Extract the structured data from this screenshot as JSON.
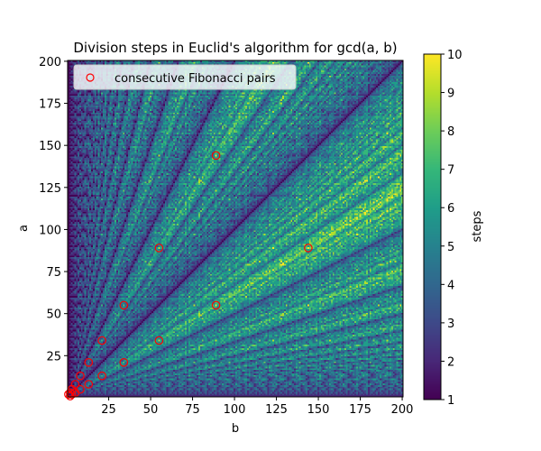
{
  "chart_data": {
    "type": "heatmap",
    "title": "Division steps in Euclid's algorithm for gcd(a, b)",
    "xlabel": "b",
    "ylabel": "a",
    "xlim": [
      1,
      200
    ],
    "ylim": [
      1,
      200
    ],
    "x_ticks": [
      25,
      50,
      75,
      100,
      125,
      150,
      175,
      200
    ],
    "y_ticks": [
      25,
      50,
      75,
      100,
      125,
      150,
      175,
      200
    ],
    "colormap": "viridis",
    "colorbar": {
      "label": "steps",
      "range": [
        1,
        10
      ],
      "ticks": [
        1,
        2,
        3,
        4,
        5,
        6,
        7,
        8,
        9,
        10
      ]
    },
    "value": "number of division steps to compute gcd(a, b)",
    "scatter": {
      "name": "consecutive Fibonacci pairs",
      "marker": "open circle",
      "color": "#ff0000",
      "points": [
        [
          1,
          2
        ],
        [
          2,
          1
        ],
        [
          2,
          3
        ],
        [
          3,
          2
        ],
        [
          3,
          5
        ],
        [
          5,
          3
        ],
        [
          5,
          8
        ],
        [
          8,
          5
        ],
        [
          8,
          13
        ],
        [
          13,
          8
        ],
        [
          13,
          21
        ],
        [
          21,
          13
        ],
        [
          21,
          34
        ],
        [
          34,
          21
        ],
        [
          34,
          55
        ],
        [
          55,
          34
        ],
        [
          55,
          89
        ],
        [
          89,
          55
        ],
        [
          89,
          144
        ],
        [
          144,
          89
        ]
      ]
    },
    "legend": {
      "placement": "top-left"
    }
  }
}
